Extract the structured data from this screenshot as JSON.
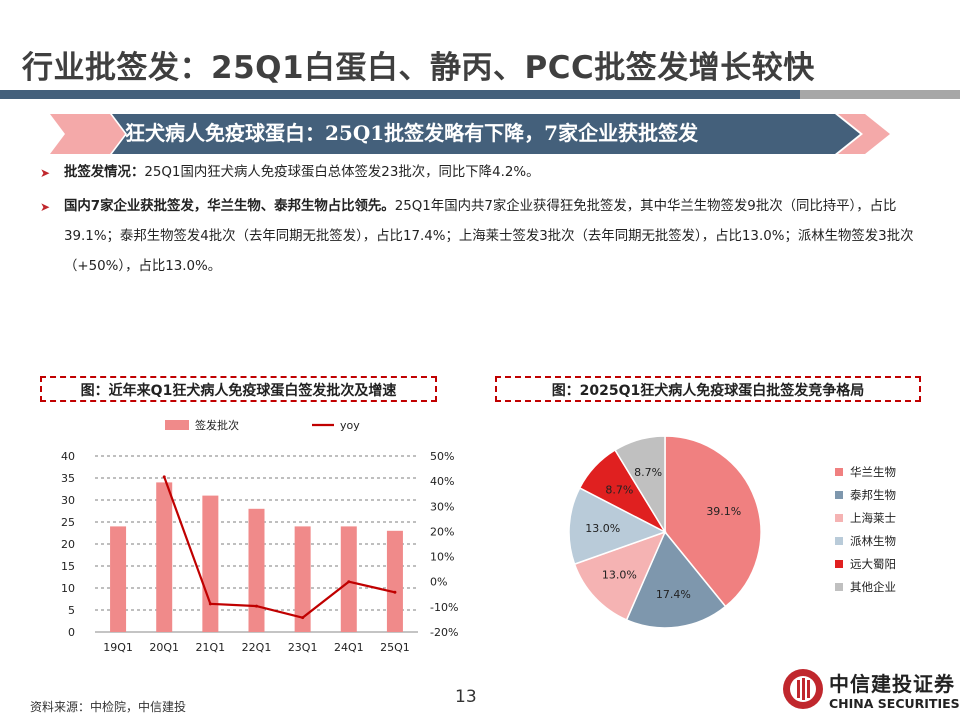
{
  "page": {
    "title": "行业批签发：25Q1白蛋白、静丙、PCC批签发增长较快",
    "section_title": "狂犬病人免疫球蛋白：25Q1批签发略有下降，7家企业获批签发",
    "bullets": [
      {
        "lead": "批签发情况：",
        "text": "25Q1国内狂犬病人免疫球蛋白总体签发23批次，同比下降4.2%。"
      },
      {
        "lead": "国内7家企业获批签发，华兰生物、泰邦生物占比领先。",
        "text": "25Q1年国内共7家企业获得狂免批签发，其中华兰生物签发9批次（同比持平），占比39.1%；泰邦生物签发4批次（去年同期无批签发），占比17.4%；上海莱士签发3批次（去年同期无批签发），占比13.0%；派林生物签发3批次（+50%），占比13.0%。"
      }
    ],
    "source": "资料来源：中检院，中信建投",
    "page_number": "13",
    "logo_cn": "中信建投证券",
    "logo_en": "CHINA SECURITIES",
    "logo_icon": "china-securities-logo-icon",
    "colors": {
      "accent_red": "#c0272d",
      "bar_red": "#f08a8a",
      "line_red": "#c00000",
      "title_blue": "#44607b"
    }
  },
  "chart_data": [
    {
      "type": "bar",
      "title": "图：近年来Q1狂犬病人免疫球蛋白签发批次及增速",
      "categories": [
        "19Q1",
        "20Q1",
        "21Q1",
        "22Q1",
        "23Q1",
        "24Q1",
        "25Q1"
      ],
      "series": [
        {
          "name": "签发批次",
          "type": "bar",
          "axis": "left",
          "color": "#f08a8a",
          "values": [
            24,
            34,
            31,
            28,
            24,
            24,
            23
          ]
        },
        {
          "name": "yoy",
          "type": "line",
          "axis": "right",
          "color": "#c00000",
          "values": [
            null,
            41.7,
            -8.8,
            -9.7,
            -14.3,
            0.0,
            -4.2
          ]
        }
      ],
      "ylim": [
        0,
        40
      ],
      "yticks": [
        "0",
        "5",
        "10",
        "15",
        "20",
        "25",
        "30",
        "35",
        "40"
      ],
      "y2lim": [
        -20,
        50
      ],
      "y2ticks": [
        "-20%",
        "-10%",
        "0%",
        "10%",
        "20%",
        "30%",
        "40%",
        "50%"
      ],
      "grid": true,
      "legend": "top"
    },
    {
      "type": "pie",
      "title": "图：2025Q1狂犬病人免疫球蛋白批签发竞争格局",
      "labels": [
        "华兰生物",
        "泰邦生物",
        "上海莱士",
        "派林生物",
        "远大蜀阳",
        "其他企业"
      ],
      "values": [
        39.1,
        17.4,
        13.0,
        13.0,
        8.7,
        8.7
      ],
      "value_labels": [
        "39.1%",
        "17.4%",
        "13.0%",
        "13.0%",
        "8.7%",
        "8.7%"
      ],
      "colors": [
        "#f08080",
        "#7e97ad",
        "#f5b3b3",
        "#b9cbd9",
        "#e02020",
        "#c0c0c0"
      ],
      "legend": "right"
    }
  ]
}
